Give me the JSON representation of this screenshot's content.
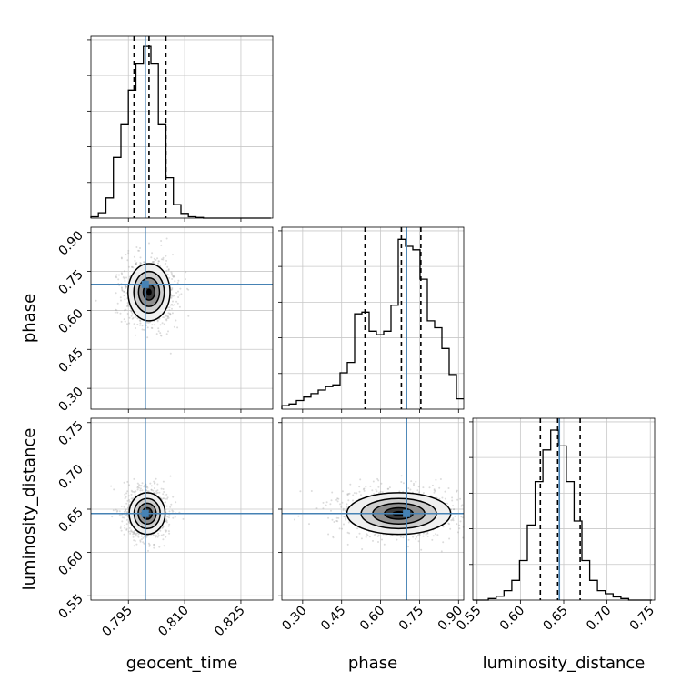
{
  "chart_data": {
    "type": "corner",
    "parameters": [
      "geocent_time",
      "phase",
      "luminosity_distance"
    ],
    "axis_labels": {
      "geocent_time": "geocent_time",
      "phase": "phase",
      "luminosity_distance": "luminosity_distance"
    },
    "ranges": {
      "geocent_time": [
        0.785,
        0.8335
      ],
      "phase": [
        0.22,
        0.92
      ],
      "luminosity_distance": [
        0.545,
        0.755
      ]
    },
    "ticks": {
      "geocent_time": [
        "0.795",
        "0.810",
        "0.825"
      ],
      "phase": [
        "0.30",
        "0.45",
        "0.60",
        "0.75",
        "0.90"
      ],
      "luminosity_distance": [
        "0.55",
        "0.60",
        "0.65",
        "0.70",
        "0.75"
      ]
    },
    "truths": {
      "geocent_time": 0.7995,
      "phase": 0.7,
      "luminosity_distance": 0.645
    },
    "quantiles": {
      "geocent_time": [
        0.7965,
        0.8005,
        0.805
      ],
      "phase": [
        0.54,
        0.68,
        0.755
      ],
      "luminosity_distance": [
        0.623,
        0.643,
        0.669
      ]
    },
    "histograms": {
      "geocent_time": {
        "edges": [
          0.785,
          0.787,
          0.789,
          0.791,
          0.793,
          0.795,
          0.797,
          0.799,
          0.801,
          0.803,
          0.805,
          0.807,
          0.809,
          0.811,
          0.813,
          0.815,
          0.817,
          0.819,
          0.821,
          0.823,
          0.825,
          0.827,
          0.829,
          0.831,
          0.833
        ],
        "counts": [
          2,
          8,
          30,
          90,
          140,
          190,
          230,
          255,
          230,
          140,
          60,
          20,
          7,
          2,
          1,
          0,
          0,
          0,
          0,
          0,
          0,
          0,
          0,
          0
        ],
        "ymax": 270
      },
      "phase": {
        "edges": [
          0.22,
          0.248,
          0.276,
          0.304,
          0.332,
          0.36,
          0.388,
          0.416,
          0.444,
          0.472,
          0.5,
          0.528,
          0.556,
          0.584,
          0.612,
          0.64,
          0.668,
          0.696,
          0.724,
          0.752,
          0.78,
          0.808,
          0.836,
          0.864,
          0.892,
          0.92
        ],
        "counts": [
          2,
          3,
          5,
          7,
          9,
          11,
          13,
          14,
          21,
          27,
          55,
          56,
          45,
          43,
          45,
          60,
          98,
          94,
          92,
          75,
          51,
          47,
          35,
          20,
          6
        ],
        "ymax": 105
      },
      "luminosity_distance": {
        "edges": [
          0.545,
          0.554,
          0.563,
          0.572,
          0.581,
          0.59,
          0.599,
          0.608,
          0.617,
          0.626,
          0.635,
          0.644,
          0.653,
          0.662,
          0.671,
          0.68,
          0.689,
          0.698,
          0.707,
          0.716,
          0.725,
          0.734,
          0.743,
          0.752
        ],
        "counts": [
          0,
          0,
          2,
          5,
          12,
          25,
          50,
          95,
          150,
          190,
          215,
          195,
          150,
          100,
          50,
          25,
          12,
          8,
          4,
          2,
          0,
          0,
          0
        ],
        "ymax": 230
      }
    },
    "density_2d": [
      {
        "x": "geocent_time",
        "y": "phase",
        "cx": 0.8005,
        "cy": 0.67,
        "sx": 0.0028,
        "sy": 0.055
      },
      {
        "x": "geocent_time",
        "y": "luminosity_distance",
        "cx": 0.8,
        "cy": 0.645,
        "sx": 0.0024,
        "sy": 0.012
      },
      {
        "x": "phase",
        "y": "luminosity_distance",
        "cx": 0.67,
        "cy": 0.645,
        "sx": 0.1,
        "sy": 0.012
      }
    ],
    "truth_color": "#4682b4",
    "line_color": "#000000",
    "grid": true
  }
}
